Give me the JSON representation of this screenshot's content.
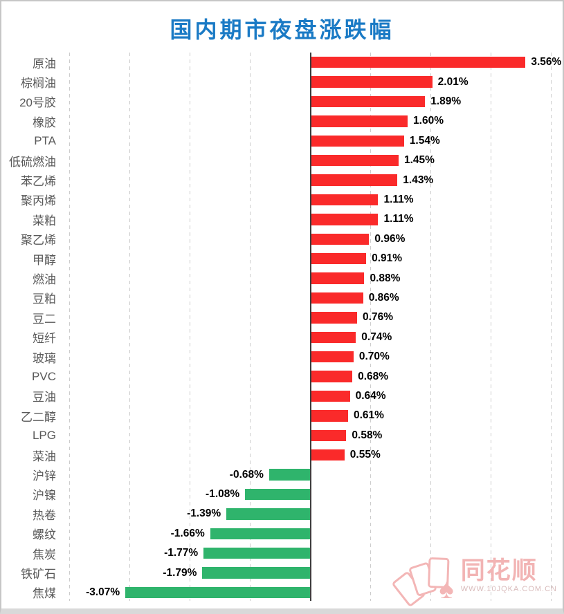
{
  "title": "国内期市夜盘涨跌幅",
  "chart_data": {
    "type": "bar",
    "orientation": "horizontal",
    "title": "国内期市夜盘涨跌幅",
    "xlabel": "",
    "ylabel": "",
    "xlim": [
      -4,
      4.2
    ],
    "gridline_step_pct": 1,
    "grid": "vertical-dashed",
    "categories": [
      "原油",
      "棕榈油",
      "20号胶",
      "橡胶",
      "PTA",
      "低硫燃油",
      "苯乙烯",
      "聚丙烯",
      "菜粕",
      "聚乙烯",
      "甲醇",
      "燃油",
      "豆粕",
      "豆二",
      "短纤",
      "玻璃",
      "PVC",
      "豆油",
      "乙二醇",
      "LPG",
      "菜油",
      "沪锌",
      "沪镍",
      "热卷",
      "螺纹",
      "焦炭",
      "铁矿石",
      "焦煤"
    ],
    "values": [
      3.56,
      2.01,
      1.89,
      1.6,
      1.54,
      1.45,
      1.43,
      1.11,
      1.11,
      0.96,
      0.91,
      0.88,
      0.86,
      0.76,
      0.74,
      0.7,
      0.68,
      0.64,
      0.61,
      0.58,
      0.55,
      -0.68,
      -1.08,
      -1.39,
      -1.66,
      -1.77,
      -1.79,
      -3.07
    ],
    "value_labels": [
      "3.56%",
      "2.01%",
      "1.89%",
      "1.60%",
      "1.54%",
      "1.45%",
      "1.43%",
      "1.11%",
      "1.11%",
      "0.96%",
      "0.91%",
      "0.88%",
      "0.86%",
      "0.76%",
      "0.74%",
      "0.70%",
      "0.68%",
      "0.64%",
      "0.61%",
      "0.58%",
      "0.55%",
      "-0.68%",
      "-1.08%",
      "-1.39%",
      "-1.66%",
      "-1.77%",
      "-1.79%",
      "-3.07%"
    ],
    "legend": null
  },
  "colors": {
    "positive_bar": "#FA2A2A",
    "negative_bar": "#2FB46C",
    "title": "#1A7AC5",
    "category_label": "#595959",
    "value_label": "#000000",
    "gridline": "#cccccc",
    "zero_axis": "#3d3d3d",
    "watermark": "#f2b4b4"
  },
  "watermark": {
    "brand": "同花顺",
    "url": "WWW.10JQKA.COM.CN",
    "icon": "card-fan-spade-icon"
  }
}
